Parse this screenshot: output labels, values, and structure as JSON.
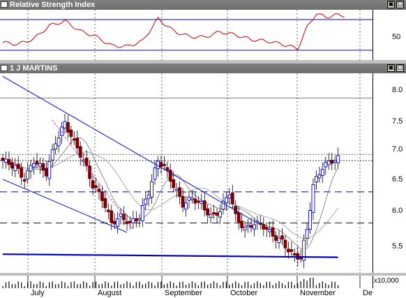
{
  "rsi_window": {
    "title": "Relative Strength Index",
    "ticks": [
      {
        "value": 50,
        "label": "50"
      }
    ],
    "lines": [
      70,
      30
    ]
  },
  "price_window": {
    "title": "1 J MARTINS",
    "y_ticks": [
      {
        "value": 8.0,
        "label": "8.0"
      },
      {
        "value": 7.5,
        "label": "7.5"
      },
      {
        "value": 7.0,
        "label": "7.0"
      },
      {
        "value": 6.5,
        "label": "6.5"
      },
      {
        "value": 6.0,
        "label": "6.0"
      },
      {
        "value": 5.5,
        "label": "5.5"
      }
    ]
  },
  "volume_axis": {
    "label": "x10,000"
  },
  "months": [
    {
      "label": "July"
    },
    {
      "label": "August"
    },
    {
      "label": "September"
    },
    {
      "label": "October"
    },
    {
      "label": "November"
    },
    {
      "label": "De"
    }
  ],
  "window_buttons": {
    "restore": "▣",
    "maximize": "□"
  },
  "colors": {
    "up": "#0000cc",
    "down": "#800000",
    "rsi": "#cc0000",
    "trend": "#0000cc",
    "ma_short": "#808080",
    "ma_long": "#a0a0a0",
    "dash": "#000080"
  },
  "chart_data": {
    "type": "candlestick",
    "ylim": [
      5.2,
      8.4
    ],
    "price_scale_ticks": [
      8.0,
      7.5,
      7.0,
      6.5,
      6.0,
      5.5
    ],
    "horizontal_levels": {
      "dashed": [
        6.5,
        6.0
      ],
      "dotted": [
        7.1,
        7.0
      ]
    },
    "price_anchors": [
      {
        "x": 0,
        "y": 7.0
      },
      {
        "x": 4,
        "y": 6.9
      },
      {
        "x": 7,
        "y": 6.7
      },
      {
        "x": 10,
        "y": 7.0
      },
      {
        "x": 14,
        "y": 6.8
      },
      {
        "x": 17,
        "y": 7.3
      },
      {
        "x": 20,
        "y": 7.6
      },
      {
        "x": 23,
        "y": 7.3
      },
      {
        "x": 26,
        "y": 7.0
      },
      {
        "x": 29,
        "y": 6.6
      },
      {
        "x": 32,
        "y": 6.4
      },
      {
        "x": 35,
        "y": 6.0
      },
      {
        "x": 38,
        "y": 6.1
      },
      {
        "x": 41,
        "y": 6.0
      },
      {
        "x": 44,
        "y": 6.1
      },
      {
        "x": 47,
        "y": 6.5
      },
      {
        "x": 50,
        "y": 7.0
      },
      {
        "x": 52,
        "y": 6.9
      },
      {
        "x": 55,
        "y": 6.6
      },
      {
        "x": 58,
        "y": 6.3
      },
      {
        "x": 61,
        "y": 6.4
      },
      {
        "x": 64,
        "y": 6.3
      },
      {
        "x": 67,
        "y": 6.1
      },
      {
        "x": 70,
        "y": 6.2
      },
      {
        "x": 73,
        "y": 6.5
      },
      {
        "x": 75,
        "y": 6.1
      },
      {
        "x": 78,
        "y": 5.9
      },
      {
        "x": 81,
        "y": 6.0
      },
      {
        "x": 84,
        "y": 5.95
      },
      {
        "x": 87,
        "y": 5.8
      },
      {
        "x": 90,
        "y": 5.7
      },
      {
        "x": 93,
        "y": 5.5
      },
      {
        "x": 96,
        "y": 5.45
      },
      {
        "x": 98,
        "y": 5.9
      },
      {
        "x": 100,
        "y": 6.6
      },
      {
        "x": 103,
        "y": 6.9
      },
      {
        "x": 106,
        "y": 7.0
      },
      {
        "x": 109,
        "y": 7.05
      }
    ],
    "trendlines": [
      {
        "x1": 0,
        "y1": 8.35,
        "x2": 82,
        "y2": 6.0
      },
      {
        "x1": 0,
        "y1": 6.7,
        "x2": 40,
        "y2": 5.85
      },
      {
        "x1": 0,
        "y1": 5.5,
        "x2": 108,
        "y2": 5.45
      }
    ],
    "rsi_anchors": [
      {
        "x": 0,
        "y": 40
      },
      {
        "x": 5,
        "y": 38
      },
      {
        "x": 10,
        "y": 45
      },
      {
        "x": 15,
        "y": 62
      },
      {
        "x": 20,
        "y": 68
      },
      {
        "x": 25,
        "y": 55
      },
      {
        "x": 30,
        "y": 48
      },
      {
        "x": 35,
        "y": 36
      },
      {
        "x": 40,
        "y": 35
      },
      {
        "x": 45,
        "y": 42
      },
      {
        "x": 50,
        "y": 71
      },
      {
        "x": 55,
        "y": 55
      },
      {
        "x": 60,
        "y": 48
      },
      {
        "x": 65,
        "y": 47
      },
      {
        "x": 70,
        "y": 54
      },
      {
        "x": 75,
        "y": 50
      },
      {
        "x": 80,
        "y": 44
      },
      {
        "x": 85,
        "y": 42
      },
      {
        "x": 90,
        "y": 38
      },
      {
        "x": 95,
        "y": 32
      },
      {
        "x": 98,
        "y": 60
      },
      {
        "x": 101,
        "y": 78
      },
      {
        "x": 104,
        "y": 73
      },
      {
        "x": 107,
        "y": 76
      },
      {
        "x": 110,
        "y": 75
      }
    ]
  }
}
